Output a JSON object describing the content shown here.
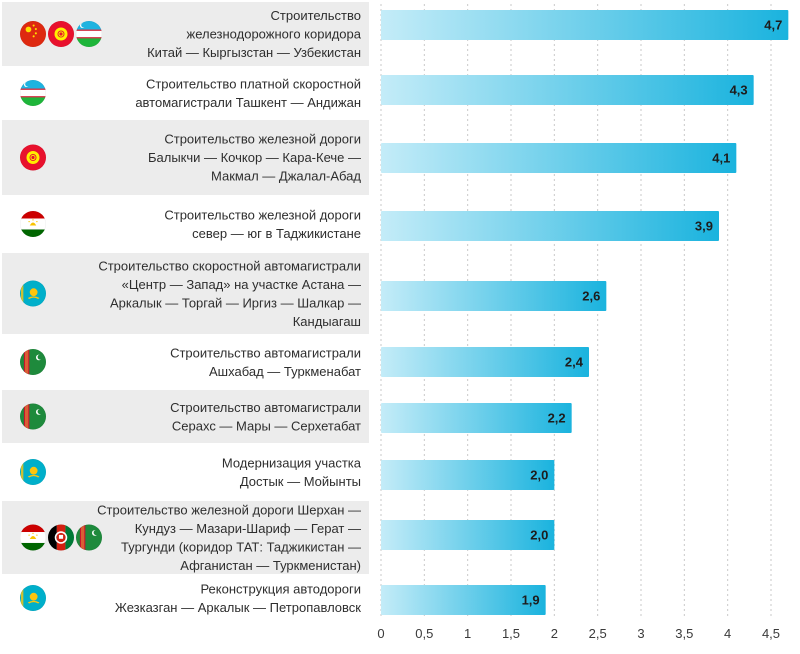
{
  "chart_data": {
    "type": "bar",
    "orientation": "horizontal",
    "categories": [
      "Строительство железнодорожного коридора Китай — Кыргызстан — Узбекистан",
      "Строительство платной скоростной автомагистрали Ташкент — Андижан",
      "Строительство железной дороги Балыкчи — Кочкор — Кара-Кече — Макмал — Джалал-Абад",
      "Строительство железной дороги север — юг в Таджикистане",
      "Строительство скоростной автомагистрали «Центр — Запад» на участке Астана — Аркалык — Торгай — Иргиз — Шалкар — Кандыагаш",
      "Строительство автомагистрали Ашхабад — Туркменабат",
      "Строительство автомагистрали Серахс — Мары — Серхетабат",
      "Модернизация участка Достык — Мойынты",
      "Строительство железной дороги Шерхан — Кундуз — Мазари-Шариф — Герат — Тургунди (коридор ТАТ: Таджикистан — Афганистан — Туркменистан)",
      "Реконструкция автодороги Жезказган — Аркалык — Петропавловск"
    ],
    "label_lines": [
      [
        "Строительство",
        "железнодорожного коридора",
        "Китай — Кыргызстан — Узбекистан"
      ],
      [
        "Строительство платной скоростной",
        "автомагистрали Ташкент — Андижан"
      ],
      [
        "Строительство железной дороги",
        "Балыкчи — Кочкор — Кара-Кече —",
        "Макмал — Джалал-Абад"
      ],
      [
        "Строительство железной дороги",
        "север — юг в Таджикистане"
      ],
      [
        "Строительство скоростной автомагистрали",
        "«Центр — Запад» на участке Астана —",
        "Аркалык — Торгай — Иргиз — Шалкар —",
        "Кандыагаш"
      ],
      [
        "Строительство автомагистрали",
        "Ашхабад — Туркменабат"
      ],
      [
        "Строительство автомагистрали",
        "Серахс — Мары — Серхетабат"
      ],
      [
        "Модернизация участка",
        "Достык — Мойынты"
      ],
      [
        "Строительство железной дороги Шерхан —",
        "Кундуз — Мазари-Шариф — Герат —",
        "Тургунди (коридор ТАТ: Таджикистан —",
        "Афганистан — Туркменистан)"
      ],
      [
        "Реконструкция автодороги",
        "Жезказган — Аркалык — Петропавловск"
      ]
    ],
    "values": [
      4.7,
      4.3,
      4.1,
      3.9,
      2.6,
      2.4,
      2.2,
      2.0,
      2.0,
      1.9
    ],
    "value_labels": [
      "4,7",
      "4,3",
      "4,1",
      "3,9",
      "2,6",
      "2,4",
      "2,2",
      "2,0",
      "2,0",
      "1,9"
    ],
    "flags": [
      [
        "china-flag",
        "kyrgyzstan-flag",
        "uzbekistan-flag"
      ],
      [
        "uzbekistan-flag"
      ],
      [
        "kyrgyzstan-flag"
      ],
      [
        "tajikistan-flag"
      ],
      [
        "kazakhstan-flag"
      ],
      [
        "turkmenistan-flag"
      ],
      [
        "turkmenistan-flag"
      ],
      [
        "kazakhstan-flag"
      ],
      [
        "tajikistan-flag",
        "afghanistan-flag",
        "turkmenistan-flag"
      ],
      [
        "kazakhstan-flag"
      ]
    ],
    "xlim": [
      0,
      4.5
    ],
    "ticks": [
      0,
      0.5,
      1,
      1.5,
      2,
      2.5,
      3,
      3.5,
      4,
      4.5
    ],
    "tick_labels": [
      "0",
      "0,5",
      "1",
      "1,5",
      "2",
      "2,5",
      "3",
      "3,5",
      "4",
      "4,5"
    ],
    "title": "",
    "xlabel": "",
    "ylabel": "",
    "grid": "vertical dashed",
    "colors": {
      "bar_start": "#c4ecf8",
      "bar_end": "#1ab3de",
      "row_band": "#ececec",
      "grid": "#c9c9c9"
    }
  }
}
